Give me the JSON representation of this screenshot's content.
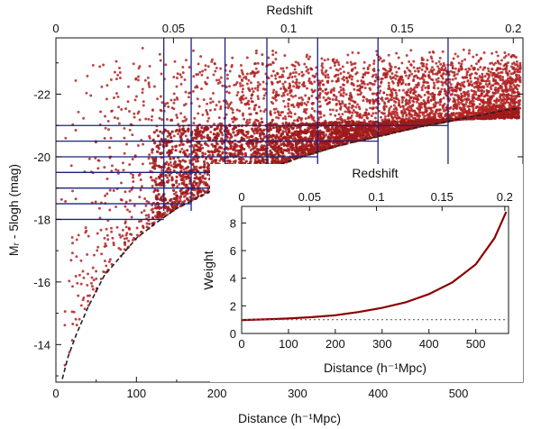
{
  "chart_data": [
    {
      "type": "scatter",
      "title": "",
      "xlabel": "Distance (h⁻¹Mpc)",
      "ylabel": "Mᵣ - 5logh (mag)",
      "top_axis_label": "Redshift",
      "xlim": [
        0,
        580
      ],
      "ylim": [
        -12.8,
        -23.8
      ],
      "x_ticks": [
        0,
        100,
        200,
        300,
        400,
        500
      ],
      "y_ticks": [
        -22,
        -20,
        -18,
        -16,
        -14
      ],
      "top_ticks": [
        {
          "label": "0",
          "distance": 0
        },
        {
          "label": "0.05",
          "distance": 146
        },
        {
          "label": "0.1",
          "distance": 289
        },
        {
          "label": "0.15",
          "distance": 430
        },
        {
          "label": "0.2",
          "distance": 568
        }
      ],
      "series": [
        {
          "name": "galaxies",
          "color": "#b22222",
          "note": "dense cloud of points bounded below by the flux limit curve"
        }
      ],
      "flux_limit_curve": {
        "style": "dashed",
        "color": "#222222",
        "points": [
          [
            8,
            -12.9
          ],
          [
            15,
            -13.6
          ],
          [
            25,
            -14.3
          ],
          [
            40,
            -15.2
          ],
          [
            60,
            -16.2
          ],
          [
            80,
            -16.8
          ],
          [
            100,
            -17.4
          ],
          [
            125,
            -17.9
          ],
          [
            150,
            -18.35
          ],
          [
            200,
            -19.0
          ],
          [
            250,
            -19.5
          ],
          [
            300,
            -19.95
          ],
          [
            350,
            -20.35
          ],
          [
            400,
            -20.65
          ],
          [
            450,
            -20.95
          ],
          [
            500,
            -21.2
          ],
          [
            560,
            -21.5
          ],
          [
            575,
            -21.55
          ]
        ]
      },
      "volume_limit_grid": {
        "color": "#1a237e",
        "vertical_distances": [
          134,
          168,
          210,
          262,
          325,
          400,
          487
        ],
        "horizontal_magnitudes": [
          -21.0,
          -20.5,
          -20.0,
          -19.5,
          -19.0,
          -18.5,
          -18.0
        ]
      }
    },
    {
      "type": "line",
      "title": "",
      "xlabel": "Distance (h⁻¹Mpc)",
      "ylabel": "Weight",
      "top_axis_label": "Redshift",
      "xlim": [
        0,
        570
      ],
      "ylim": [
        0,
        9.2
      ],
      "x_ticks": [
        0,
        100,
        200,
        300,
        400,
        500
      ],
      "y_ticks": [
        0,
        2,
        4,
        6,
        8
      ],
      "top_ticks": [
        {
          "label": "0",
          "distance": 0
        },
        {
          "label": "0.05",
          "distance": 145
        },
        {
          "label": "0.1",
          "distance": 288
        },
        {
          "label": "0.15",
          "distance": 428
        },
        {
          "label": "0.2",
          "distance": 562
        }
      ],
      "series": [
        {
          "name": "weight",
          "color": "#8b0000",
          "x": [
            0,
            50,
            100,
            150,
            200,
            250,
            300,
            350,
            400,
            450,
            500,
            540,
            565
          ],
          "y": [
            0.97,
            1.02,
            1.08,
            1.18,
            1.32,
            1.55,
            1.85,
            2.25,
            2.85,
            3.7,
            5.0,
            6.9,
            8.8
          ]
        },
        {
          "name": "reference",
          "style": "dotted",
          "color": "#666666",
          "x": [
            0,
            565
          ],
          "y": [
            1.0,
            1.0
          ]
        }
      ]
    }
  ]
}
